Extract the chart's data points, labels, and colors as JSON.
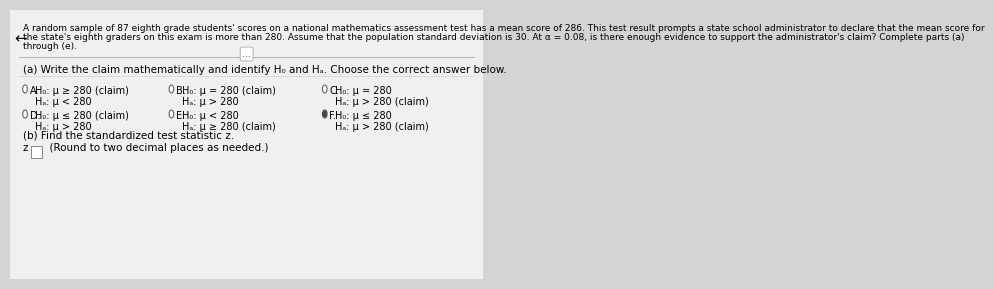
{
  "bg_color": "#e8e8e8",
  "content_bg": "#f0f0f0",
  "header_text": "A random sample of 87 eighth grade students' scores on a national mathematics assessment test has a mean score of 286. This test result prompts a state school administrator to declare that the mean score for\nthe state's eighth graders on this exam is more than 280. Assume that the population standard deviation is 30. At α = 0.08, is there enough evidence to support the administrator's claim? Complete parts (a)\nthrough (e).",
  "part_a_label": "(a) Write the claim mathematically and identify H₀ and Hₐ. Choose the correct answer below.",
  "options": [
    {
      "label": "A.",
      "h0": "H₀: μ ≥ 280 (claim)",
      "ha": "Hₐ: μ < 280",
      "selected": false,
      "col": 0
    },
    {
      "label": "B.",
      "h0": "H₀: μ = 280 (claim)",
      "ha": "Hₐ: μ > 280",
      "selected": false,
      "col": 1
    },
    {
      "label": "C.",
      "h0": "H₀: μ = 280",
      "ha": "Hₐ: μ > 280 (claim)",
      "selected": false,
      "col": 2
    },
    {
      "label": "D.",
      "h0": "H₀: μ ≤ 280 (claim)",
      "ha": "Hₐ: μ > 280",
      "selected": false,
      "col": 0
    },
    {
      "label": "E.",
      "h0": "H₀: μ < 280",
      "ha": "Hₐ: μ ≥ 280 (claim)",
      "selected": false,
      "col": 1
    },
    {
      "label": "F.",
      "h0": "H₀: μ ≤ 280",
      "ha": "Hₐ: μ > 280 (claim)",
      "selected": true,
      "col": 2
    }
  ],
  "part_b_label": "(b) Find the standardized test statistic z.",
  "part_b_input": "z = □  (Round to two decimal places as needed.)",
  "arrow_symbol": "←",
  "dots_symbol": "•••"
}
